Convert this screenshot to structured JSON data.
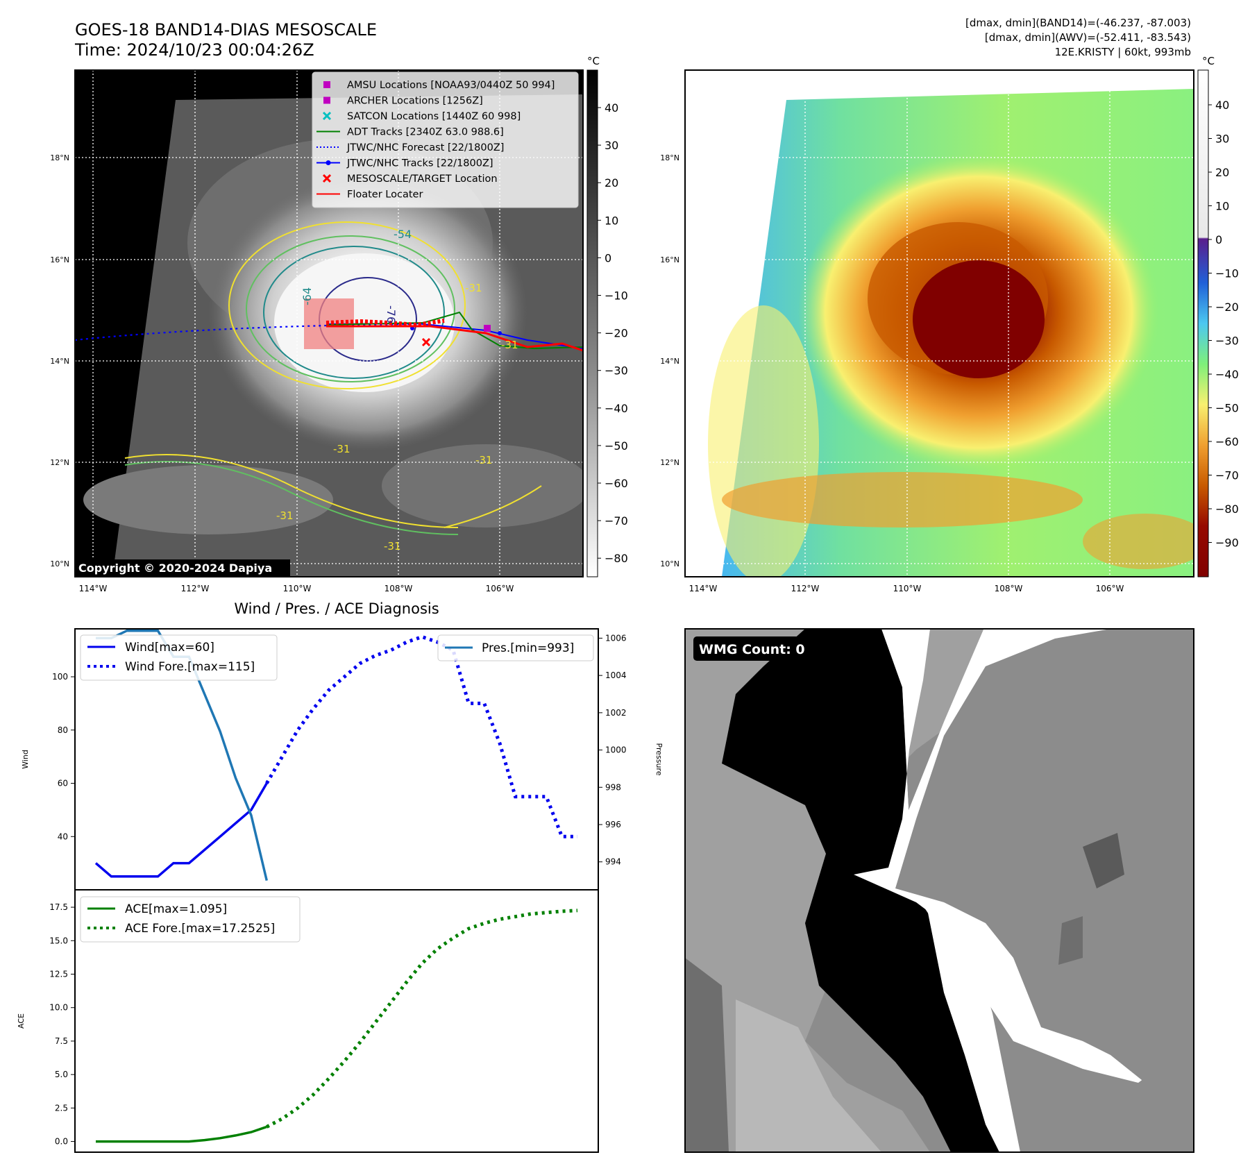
{
  "header": {
    "title": "GOES-18 BAND14-DIAS MESOSCALE",
    "time": "Time: 2024/10/23 00:04:26Z",
    "info_band14": "[dmax, dmin](BAND14)=(-46.237, -87.003)",
    "info_awv": "[dmax, dmin](AWV)=(-52.411, -83.543)",
    "storm": "12E.KRISTY | 60kt, 993mb"
  },
  "map_axes": {
    "lat_labels": [
      "18°N",
      "16°N",
      "14°N",
      "12°N",
      "10°N"
    ],
    "lon_labels": [
      "114°W",
      "112°W",
      "110°W",
      "108°W",
      "106°W"
    ],
    "copyright": "Copyright © 2020-2024 Dapiya",
    "contour_labels": [
      "-54",
      "-64",
      "-76",
      "-31",
      "-31",
      "-31",
      "-31",
      "-31",
      "-31"
    ]
  },
  "left_colorbar": {
    "unit": "°C",
    "ticks": [
      "40",
      "30",
      "20",
      "10",
      "0",
      "−10",
      "−20",
      "−30",
      "−40",
      "−50",
      "−60",
      "−70",
      "−80"
    ]
  },
  "right_colorbar": {
    "unit": "°C",
    "ticks": [
      "40",
      "30",
      "20",
      "10",
      "0",
      "−10",
      "−20",
      "−30",
      "−40",
      "−50",
      "−60",
      "−70",
      "−80",
      "−90"
    ]
  },
  "map_legend": [
    {
      "label": "AMSU Locations [NOAA93/0440Z 50 994]",
      "marker": "square",
      "color": "#c000c0"
    },
    {
      "label": "ARCHER Locations [1256Z]",
      "marker": "square",
      "color": "#c000c0"
    },
    {
      "label": "SATCON Locations [1440Z 60 998]",
      "marker": "x",
      "color": "#00c0c0"
    },
    {
      "label": "ADT Tracks [2340Z 63.0 988.6]",
      "marker": "line",
      "color": "#008000"
    },
    {
      "label": "JTWC/NHC Forecast [22/1800Z]",
      "marker": "dotted",
      "color": "#0000ff"
    },
    {
      "label": "JTWC/NHC Tracks [22/1800Z]",
      "marker": "line-dot",
      "color": "#0000ff"
    },
    {
      "label": "MESOSCALE/TARGET Location",
      "marker": "x",
      "color": "#ff0000"
    },
    {
      "label": "Floater Locater",
      "marker": "line",
      "color": "#ff0000"
    }
  ],
  "wmg": {
    "label": "WMG Count: 0"
  },
  "chart_data": [
    {
      "type": "line",
      "title": "Wind / Pres. / ACE Diagnosis",
      "ylabel": "Wind",
      "ylim": [
        20,
        118
      ],
      "yticks": [
        "40",
        "60",
        "80",
        "100"
      ],
      "x": [
        0,
        1,
        2,
        3,
        4,
        5,
        6,
        7,
        8,
        9,
        10,
        11,
        12,
        13,
        14,
        15,
        16,
        17,
        18,
        19,
        20,
        21,
        22,
        23,
        24,
        25,
        26,
        27,
        28,
        29,
        30,
        31
      ],
      "series": [
        {
          "name": "Wind[max=60]",
          "style": "solid",
          "color": "#0000ee",
          "x": [
            0,
            1,
            2,
            3,
            4,
            5,
            6,
            7,
            8,
            9,
            10,
            11
          ],
          "values": [
            30,
            25,
            25,
            25,
            25,
            30,
            30,
            35,
            40,
            45,
            50,
            60
          ]
        },
        {
          "name": "Wind Fore.[max=115]",
          "style": "dotted",
          "color": "#0000ee",
          "x": [
            11,
            12,
            13,
            14,
            15,
            16,
            17,
            18,
            19,
            20,
            21,
            22,
            23,
            24,
            25,
            26,
            27,
            28,
            29,
            30,
            31
          ],
          "values": [
            60,
            70,
            80,
            88,
            95,
            100,
            105,
            108,
            110,
            113,
            115,
            113,
            110,
            90,
            90,
            75,
            55,
            55,
            55,
            40,
            40
          ]
        }
      ],
      "legend": [
        "Wind[max=60]",
        "Wind Fore.[max=115]"
      ]
    },
    {
      "type": "line",
      "ylabel": "Pressure",
      "ylim": [
        992.5,
        1006.5
      ],
      "yticks": [
        "994",
        "996",
        "998",
        "1000",
        "1002",
        "1004",
        "1006"
      ],
      "series": [
        {
          "name": "Pres.[min=993]",
          "style": "solid",
          "color": "#1f77b4",
          "x": [
            0,
            1,
            2,
            3,
            4,
            5,
            6,
            7,
            8,
            9,
            10,
            11
          ],
          "values": [
            1006,
            1006,
            1006.4,
            1006.4,
            1006.4,
            1005,
            1005,
            1003,
            1001,
            998.5,
            996.5,
            993
          ]
        }
      ],
      "legend": [
        "Pres.[min=993]"
      ]
    },
    {
      "type": "line",
      "ylabel": "ACE",
      "ylim": [
        -0.8,
        18.8
      ],
      "yticks": [
        "0.0",
        "2.5",
        "5.0",
        "7.5",
        "10.0",
        "12.5",
        "15.0",
        "17.5"
      ],
      "series": [
        {
          "name": "ACE[max=1.095]",
          "style": "solid",
          "color": "#008000",
          "x": [
            0,
            1,
            2,
            3,
            4,
            5,
            6,
            7,
            8,
            9,
            10,
            11
          ],
          "values": [
            0,
            0,
            0,
            0,
            0,
            0,
            0,
            0.1,
            0.25,
            0.45,
            0.7,
            1.095
          ]
        },
        {
          "name": "ACE Fore.[max=17.2525]",
          "style": "dotted",
          "color": "#008000",
          "x": [
            11,
            12,
            13,
            14,
            15,
            16,
            17,
            18,
            19,
            20,
            21,
            22,
            23,
            24,
            25,
            26,
            27,
            28,
            29,
            30,
            31
          ],
          "values": [
            1.095,
            1.7,
            2.5,
            3.5,
            4.7,
            6.0,
            7.4,
            8.9,
            10.4,
            11.9,
            13.3,
            14.4,
            15.2,
            15.9,
            16.3,
            16.6,
            16.8,
            17.0,
            17.1,
            17.2,
            17.2525
          ]
        }
      ],
      "legend": [
        "ACE[max=1.095]",
        "ACE Fore.[max=17.2525]"
      ]
    }
  ]
}
